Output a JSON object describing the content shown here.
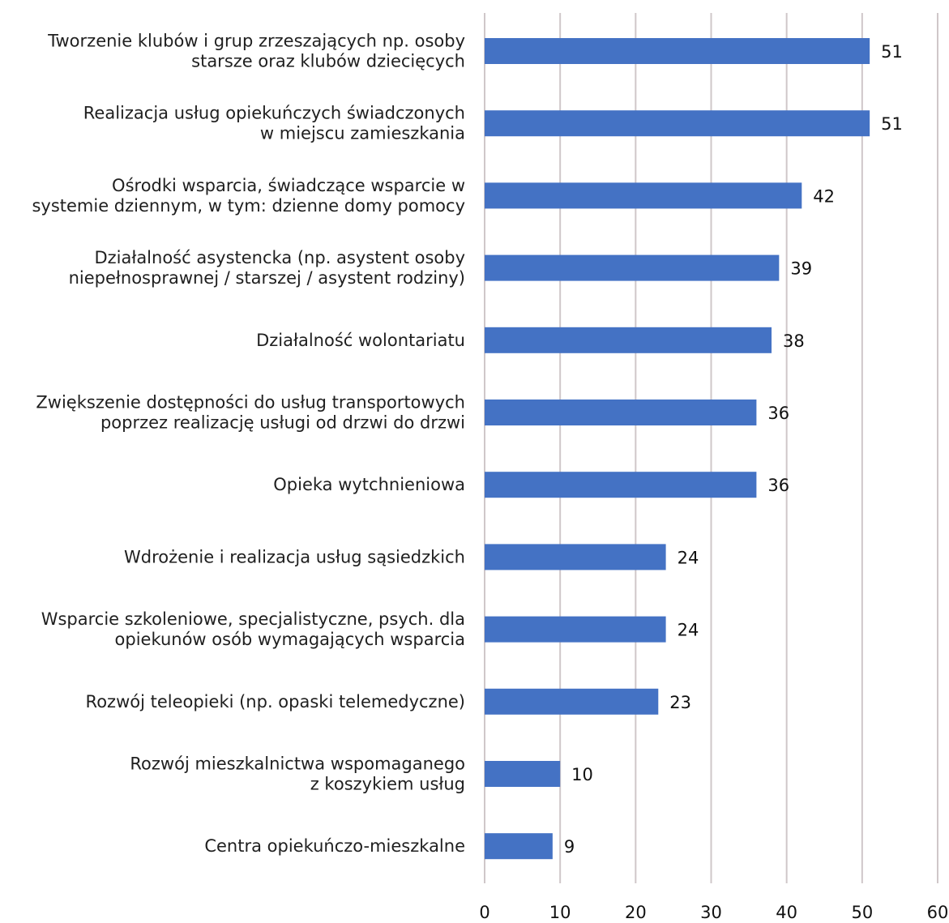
{
  "chart_data": {
    "type": "bar",
    "orientation": "horizontal",
    "categories": [
      [
        "Tworzenie klubów i grup zrzeszających np. osoby",
        "starsze oraz klubów dziecięcych"
      ],
      [
        "Realizacja usług opiekuńczych świadczonych",
        "w miejscu zamieszkania"
      ],
      [
        "Ośrodki wsparcia, świadczące wsparcie w",
        "systemie dziennym, w tym: dzienne domy pomocy"
      ],
      [
        "Działalność asystencka (np. asystent osoby",
        "niepełnosprawnej / starszej / asystent rodziny)"
      ],
      [
        "Działalność wolontariatu"
      ],
      [
        "Zwiększenie dostępności do usług transportowych",
        "poprzez realizację usługi od drzwi do drzwi"
      ],
      [
        "Opieka wytchnieniowa"
      ],
      [
        "Wdrożenie i realizacja usług sąsiedzkich"
      ],
      [
        "Wsparcie szkoleniowe, specjalistyczne, psych. dla",
        "opiekunów osób wymagających wsparcia"
      ],
      [
        "Rozwój teleopieki (np. opaski telemedyczne)"
      ],
      [
        "Rozwój mieszkalnictwa wspomaganego",
        "z koszykiem usług"
      ],
      [
        "Centra opiekuńczo-mieszkalne"
      ]
    ],
    "values": [
      51,
      51,
      42,
      39,
      38,
      36,
      36,
      24,
      24,
      23,
      10,
      9
    ],
    "data_labels": [
      "51",
      "51",
      "42",
      "39",
      "38",
      "36",
      "36",
      "24",
      "24",
      "23",
      "10",
      "9"
    ],
    "xlim": [
      0,
      60
    ],
    "xticks": [
      0,
      10,
      20,
      30,
      40,
      50,
      60
    ],
    "xtick_labels": [
      "0",
      "10",
      "20",
      "30",
      "40",
      "50",
      "60"
    ],
    "grid": "vertical",
    "legend": "none",
    "title": "",
    "xlabel": "",
    "ylabel": ""
  },
  "colors": {
    "bar": "#4472c4",
    "grid": "#cfc7c9",
    "text": "#1f1f1f"
  }
}
